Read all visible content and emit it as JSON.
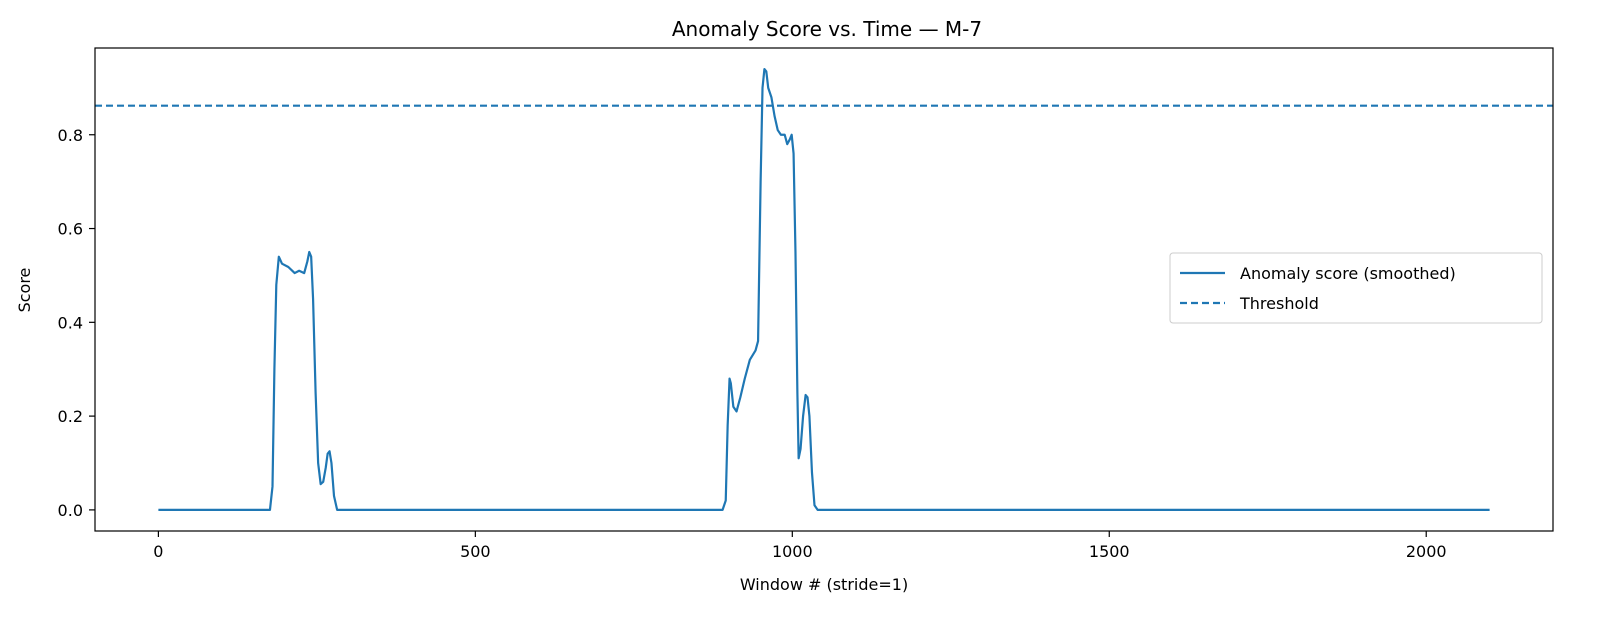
{
  "chart_data": {
    "type": "line",
    "title": "Anomaly Score vs. Time — M-7",
    "xlabel": "Window # (stride=1)",
    "ylabel": "Score",
    "xlim": [
      -100,
      2200
    ],
    "ylim": [
      -0.045,
      0.985
    ],
    "xticks": [
      0,
      500,
      1000,
      1500,
      2000
    ],
    "yticks": [
      0.0,
      0.2,
      0.4,
      0.6,
      0.8
    ],
    "grid": false,
    "legend": {
      "placement": "center-right"
    },
    "colors": {
      "series": "#1f77b4",
      "threshold": "#1f77b4"
    },
    "series": [
      {
        "name": "Anomaly score (smoothed)",
        "style": "solid",
        "points": [
          [
            0,
            0
          ],
          [
            176,
            0
          ],
          [
            180,
            0.05
          ],
          [
            183,
            0.3
          ],
          [
            186,
            0.48
          ],
          [
            190,
            0.54
          ],
          [
            195,
            0.525
          ],
          [
            205,
            0.518
          ],
          [
            215,
            0.505
          ],
          [
            222,
            0.51
          ],
          [
            230,
            0.505
          ],
          [
            235,
            0.53
          ],
          [
            238,
            0.55
          ],
          [
            241,
            0.54
          ],
          [
            244,
            0.45
          ],
          [
            248,
            0.25
          ],
          [
            252,
            0.1
          ],
          [
            256,
            0.055
          ],
          [
            260,
            0.06
          ],
          [
            264,
            0.09
          ],
          [
            267,
            0.12
          ],
          [
            270,
            0.125
          ],
          [
            273,
            0.1
          ],
          [
            277,
            0.03
          ],
          [
            282,
            0
          ],
          [
            890,
            0
          ],
          [
            895,
            0.02
          ],
          [
            898,
            0.18
          ],
          [
            901,
            0.28
          ],
          [
            903,
            0.27
          ],
          [
            907,
            0.22
          ],
          [
            912,
            0.21
          ],
          [
            918,
            0.24
          ],
          [
            925,
            0.28
          ],
          [
            933,
            0.32
          ],
          [
            942,
            0.34
          ],
          [
            946,
            0.36
          ],
          [
            950,
            0.7
          ],
          [
            953,
            0.9
          ],
          [
            956,
            0.94
          ],
          [
            959,
            0.935
          ],
          [
            962,
            0.9
          ],
          [
            967,
            0.88
          ],
          [
            972,
            0.84
          ],
          [
            977,
            0.81
          ],
          [
            982,
            0.8
          ],
          [
            988,
            0.8
          ],
          [
            992,
            0.78
          ],
          [
            996,
            0.79
          ],
          [
            999,
            0.8
          ],
          [
            1002,
            0.76
          ],
          [
            1005,
            0.55
          ],
          [
            1008,
            0.25
          ],
          [
            1010,
            0.11
          ],
          [
            1013,
            0.13
          ],
          [
            1017,
            0.2
          ],
          [
            1021,
            0.245
          ],
          [
            1024,
            0.24
          ],
          [
            1027,
            0.2
          ],
          [
            1031,
            0.08
          ],
          [
            1035,
            0.01
          ],
          [
            1040,
            0
          ],
          [
            2100,
            0
          ]
        ]
      },
      {
        "name": "Threshold",
        "style": "dashed",
        "points": [
          [
            -100,
            0.862
          ],
          [
            2200,
            0.862
          ]
        ]
      }
    ]
  }
}
